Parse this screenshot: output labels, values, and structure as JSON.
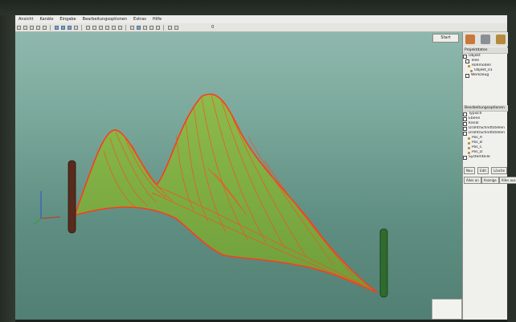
{
  "menubar": {
    "items": [
      "Ansicht",
      "Kanäle",
      "Eingabe",
      "Bearbeitungsoptionen",
      "Extras",
      "Hilfe"
    ]
  },
  "toolbar": {
    "value": "0"
  },
  "viewport": {
    "top_button_label": "Start",
    "background_color": "#7aa89b",
    "surface_color": "#7fb043",
    "edge_color": "#ff3b1a",
    "left_post_color": "#5a2a1d",
    "right_post_color": "#2f6b2c"
  },
  "panel": {
    "tree_title": "Projektdaten",
    "tree_items": [
      "Objekt",
      "Teile",
      "Rohmodell",
      "Objekt_01",
      "Werkzeug"
    ],
    "props_title": "Bearbeitungsoptionen",
    "props_items": [
      "Typisch",
      "Ebene",
      "Kanal",
      "Draht/Schnittstellen",
      "Draht/Schnittstellen",
      "Pos_A",
      "Pos_B",
      "Pos_C",
      "Pos_D",
      "Systemteile"
    ],
    "buttons_row1": [
      "Neu",
      "Edit",
      "Lösche"
    ],
    "buttons_row2": [
      "Alles an",
      "Anzeige",
      "Alles aus"
    ]
  }
}
